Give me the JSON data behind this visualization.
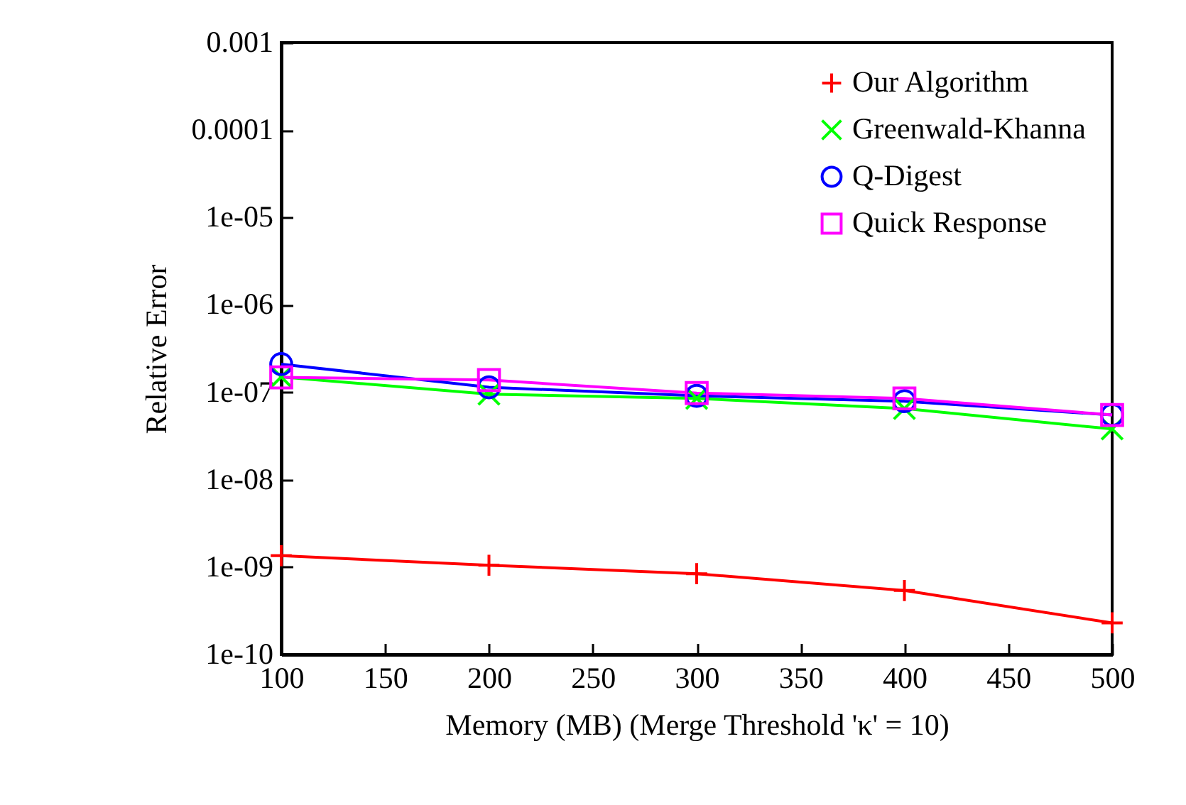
{
  "chart_data": {
    "type": "line",
    "xlabel": "Memory (MB) (Merge Threshold 'κ' = 10)",
    "ylabel": "Relative Error",
    "x": [
      100,
      200,
      300,
      400,
      500
    ],
    "series": [
      {
        "name": "Our Algorithm",
        "color": "#ff0000",
        "marker": "plus",
        "values": [
          1.35e-09,
          1.05e-09,
          8.4e-10,
          5.4e-10,
          2.3e-10
        ]
      },
      {
        "name": "Greenwald-Khanna",
        "color": "#00ff00",
        "marker": "cross",
        "values": [
          1.5e-07,
          9.5e-08,
          8.5e-08,
          6.5e-08,
          3.8e-08
        ]
      },
      {
        "name": "Q-Digest",
        "color": "#0000ff",
        "marker": "circle",
        "values": [
          2.1e-07,
          1.14e-07,
          9.1e-08,
          7.9e-08,
          5.5e-08
        ]
      },
      {
        "name": "Quick Response",
        "color": "#ff00ff",
        "marker": "square",
        "values": [
          1.48e-07,
          1.38e-07,
          9.8e-08,
          8.5e-08,
          5.5e-08
        ]
      }
    ],
    "log": "y",
    "xlim": [
      100,
      500
    ],
    "xticks": [
      100,
      150,
      200,
      250,
      300,
      350,
      400,
      450,
      500
    ],
    "ylim": [
      1e-10,
      0.001
    ],
    "yticks": [
      {
        "value": 1e-10,
        "label": "1e-10"
      },
      {
        "value": 1e-09,
        "label": "1e-09"
      },
      {
        "value": 1e-08,
        "label": "1e-08"
      },
      {
        "value": 1e-07,
        "label": "1e-07"
      },
      {
        "value": 1e-06,
        "label": "1e-06"
      },
      {
        "value": 1e-05,
        "label": "1e-05"
      },
      {
        "value": 0.0001,
        "label": "0.0001"
      },
      {
        "value": 0.001,
        "label": "0.001"
      }
    ],
    "grid": false,
    "legend": "top right",
    "line_style": "solid"
  }
}
